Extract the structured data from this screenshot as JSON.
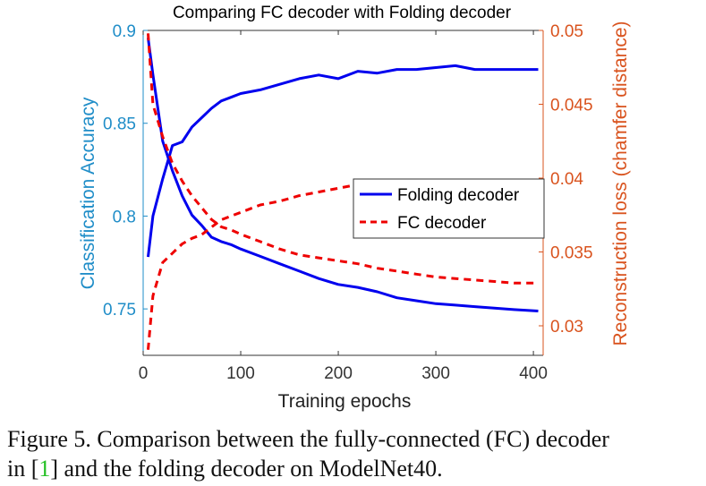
{
  "colors": {
    "left_axis": "#1f8dc8",
    "right_axis": "#d9531e",
    "folding": "#0000ee",
    "fc": "#ee0000",
    "tick_text": "#333333"
  },
  "chart_data": {
    "type": "line",
    "title": "Comparing FC decoder with Folding decoder",
    "xlabel": "Training epochs",
    "ylabel_left": "Classification Accuracy",
    "ylabel_right": "Reconstruction loss (chamfer distance)",
    "xlim": [
      0,
      410
    ],
    "ylim_left": [
      0.725,
      0.9
    ],
    "ylim_right": [
      0.028,
      0.05
    ],
    "xticks": [
      0,
      100,
      200,
      300,
      400
    ],
    "yticks_left": [
      0.75,
      0.8,
      0.85,
      0.9
    ],
    "yticks_right": [
      0.03,
      0.035,
      0.04,
      0.045,
      0.05
    ],
    "xtick_labels": [
      "0",
      "100",
      "200",
      "300",
      "400"
    ],
    "ytick_labels_left": [
      "0.75",
      "0.8",
      "0.85",
      "0.9"
    ],
    "ytick_labels_right": [
      "0.03",
      "0.035",
      "0.04",
      "0.045",
      "0.05"
    ],
    "grid": false,
    "legend_position": "center-right",
    "x": [
      5,
      10,
      20,
      30,
      40,
      50,
      60,
      70,
      80,
      90,
      100,
      120,
      140,
      160,
      180,
      200,
      220,
      240,
      260,
      280,
      300,
      320,
      340,
      360,
      380,
      405
    ],
    "series": [
      {
        "name": "Folding decoder",
        "axis": "left",
        "metric": "accuracy",
        "values": [
          0.778,
          0.8,
          0.82,
          0.838,
          0.84,
          0.848,
          0.853,
          0.858,
          0.862,
          0.864,
          0.866,
          0.868,
          0.871,
          0.874,
          0.876,
          0.874,
          0.878,
          0.877,
          0.879,
          0.879,
          0.88,
          0.881,
          0.879,
          0.879,
          0.879,
          0.879
        ]
      },
      {
        "name": "Folding decoder",
        "axis": "right",
        "metric": "loss",
        "values": [
          0.0495,
          0.047,
          0.0425,
          0.0405,
          0.0388,
          0.0375,
          0.0368,
          0.036,
          0.0357,
          0.0355,
          0.0352,
          0.0347,
          0.0342,
          0.0337,
          0.0332,
          0.0328,
          0.0326,
          0.0323,
          0.0319,
          0.0317,
          0.0315,
          0.0314,
          0.0313,
          0.0312,
          0.0311,
          0.031
        ]
      },
      {
        "name": "FC decoder",
        "axis": "left",
        "metric": "accuracy",
        "values": [
          0.728,
          0.757,
          0.775,
          0.78,
          0.785,
          0.788,
          0.79,
          0.794,
          0.798,
          0.8,
          0.802,
          0.806,
          0.808,
          0.811,
          0.813,
          0.815,
          0.817,
          0.816,
          0.818,
          0.818,
          0.819,
          0.819,
          0.818,
          0.819,
          0.819,
          0.819
        ]
      },
      {
        "name": "FC decoder",
        "axis": "right",
        "metric": "loss",
        "values": [
          0.0498,
          0.045,
          0.0428,
          0.041,
          0.0398,
          0.0388,
          0.038,
          0.0372,
          0.0367,
          0.0365,
          0.0362,
          0.0357,
          0.0352,
          0.0348,
          0.0346,
          0.0344,
          0.0342,
          0.0339,
          0.0337,
          0.0335,
          0.0333,
          0.0332,
          0.0331,
          0.033,
          0.0329,
          0.0329
        ]
      }
    ]
  },
  "legend": {
    "items": [
      "Folding decoder",
      "FC decoder"
    ]
  },
  "caption": {
    "line1": "Figure 5. Comparison between the fully-connected (FC) decoder",
    "line2_before": "in [",
    "line2_ref": "1",
    "line2_after": "] and the folding decoder on ModelNet40."
  }
}
